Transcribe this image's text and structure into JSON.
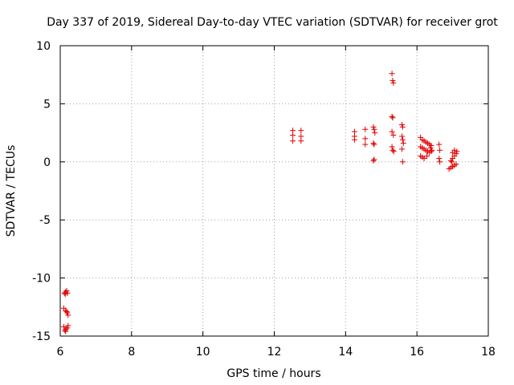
{
  "chart_data": {
    "type": "scatter",
    "title": "Day 337 of 2019, Sidereal Day-to-day VTEC variation (SDTVAR) for receiver grot",
    "xlabel": "GPS time / hours",
    "ylabel": "SDTVAR / TECUs",
    "xlim": [
      6,
      18
    ],
    "ylim": [
      -15,
      10
    ],
    "xticks": [
      "6",
      "8",
      "10",
      "12",
      "14",
      "16",
      "18"
    ],
    "yticks": [
      "-15",
      "-10",
      "-5",
      "0",
      "5",
      "10"
    ],
    "grid": true,
    "marker": "+",
    "color": "#e00000",
    "points": [
      [
        6.12,
        -11.3
      ],
      [
        6.15,
        -11.2
      ],
      [
        6.18,
        -11.1
      ],
      [
        6.2,
        -11.3
      ],
      [
        6.14,
        -11.4
      ],
      [
        6.1,
        -12.6
      ],
      [
        6.15,
        -12.8
      ],
      [
        6.2,
        -13.0
      ],
      [
        6.22,
        -13.2
      ],
      [
        6.18,
        -12.9
      ],
      [
        6.1,
        -14.2
      ],
      [
        6.13,
        -14.5
      ],
      [
        6.16,
        -14.4
      ],
      [
        6.2,
        -14.3
      ],
      [
        6.22,
        -14.1
      ],
      [
        6.15,
        -14.6
      ],
      [
        12.52,
        2.7
      ],
      [
        12.52,
        2.3
      ],
      [
        12.52,
        1.8
      ],
      [
        12.75,
        2.7
      ],
      [
        12.75,
        2.2
      ],
      [
        12.75,
        1.8
      ],
      [
        14.25,
        2.6
      ],
      [
        14.25,
        2.2
      ],
      [
        14.25,
        1.9
      ],
      [
        14.55,
        2.8
      ],
      [
        14.55,
        2.0
      ],
      [
        14.55,
        1.5
      ],
      [
        14.78,
        3.0
      ],
      [
        14.8,
        2.8
      ],
      [
        14.82,
        2.5
      ],
      [
        14.78,
        1.6
      ],
      [
        14.8,
        1.5
      ],
      [
        14.8,
        0.2
      ],
      [
        14.78,
        0.1
      ],
      [
        15.3,
        7.6
      ],
      [
        15.32,
        7.0
      ],
      [
        15.34,
        6.8
      ],
      [
        15.3,
        3.9
      ],
      [
        15.32,
        3.8
      ],
      [
        15.3,
        2.6
      ],
      [
        15.34,
        2.3
      ],
      [
        15.3,
        1.3
      ],
      [
        15.32,
        1.0
      ],
      [
        15.35,
        0.9
      ],
      [
        15.58,
        3.2
      ],
      [
        15.6,
        3.0
      ],
      [
        15.58,
        2.2
      ],
      [
        15.6,
        1.9
      ],
      [
        15.62,
        1.6
      ],
      [
        15.58,
        1.1
      ],
      [
        15.6,
        0.0
      ],
      [
        16.1,
        2.1
      ],
      [
        16.15,
        1.9
      ],
      [
        16.2,
        1.8
      ],
      [
        16.25,
        1.7
      ],
      [
        16.3,
        1.6
      ],
      [
        16.35,
        1.5
      ],
      [
        16.4,
        1.4
      ],
      [
        16.1,
        1.3
      ],
      [
        16.15,
        1.2
      ],
      [
        16.2,
        1.1
      ],
      [
        16.25,
        1.0
      ],
      [
        16.3,
        0.9
      ],
      [
        16.35,
        0.8
      ],
      [
        16.4,
        0.9
      ],
      [
        16.1,
        0.5
      ],
      [
        16.15,
        0.4
      ],
      [
        16.2,
        0.3
      ],
      [
        16.28,
        0.5
      ],
      [
        16.38,
        1.2
      ],
      [
        16.42,
        1.0
      ],
      [
        16.62,
        1.5
      ],
      [
        16.64,
        1.0
      ],
      [
        16.62,
        0.3
      ],
      [
        16.64,
        0.0
      ],
      [
        16.9,
        -0.6
      ],
      [
        16.95,
        -0.5
      ],
      [
        17.0,
        -0.4
      ],
      [
        17.05,
        -0.3
      ],
      [
        17.1,
        -0.2
      ],
      [
        16.95,
        0.1
      ],
      [
        17.0,
        0.3
      ],
      [
        17.05,
        0.5
      ],
      [
        17.1,
        0.7
      ],
      [
        17.12,
        0.9
      ],
      [
        17.0,
        0.8
      ],
      [
        17.05,
        1.0
      ],
      [
        16.98,
        0.0
      ]
    ]
  }
}
